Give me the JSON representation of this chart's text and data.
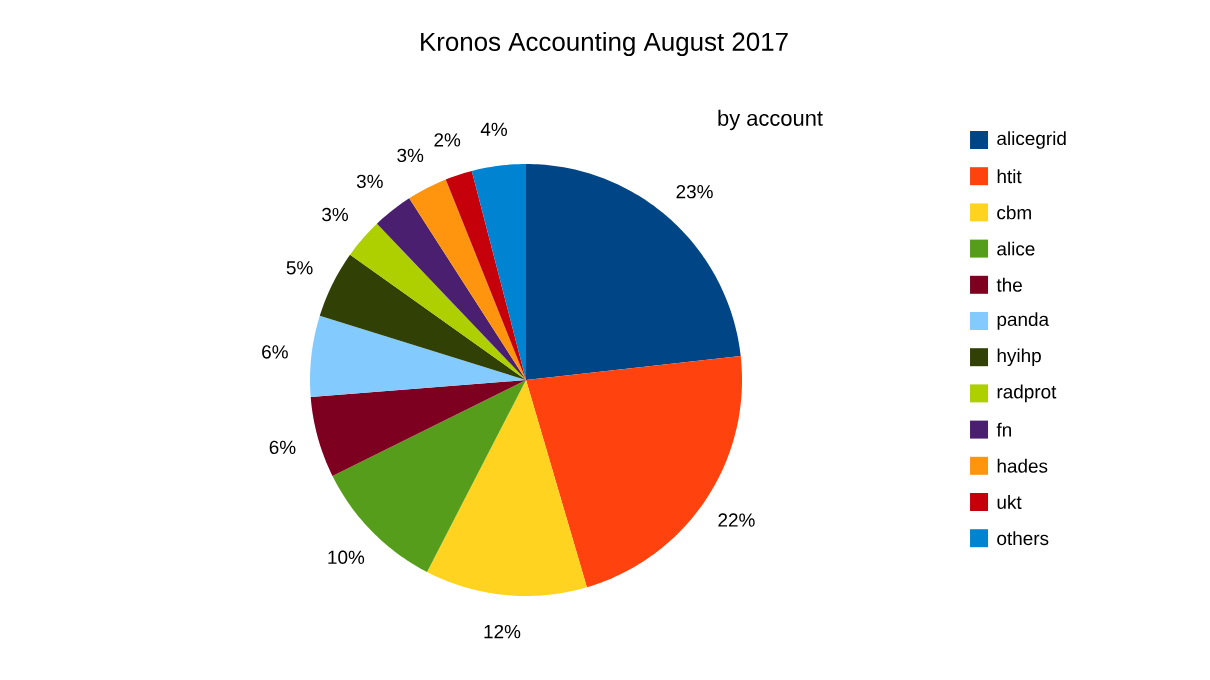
{
  "chart_data": {
    "type": "pie",
    "title": "Kronos Accounting August 2017",
    "subtitle": "by account",
    "categories": [
      "alicegrid",
      "htit",
      "cbm",
      "alice",
      "the",
      "panda",
      "hyihp",
      "radprot",
      "fn",
      "hades",
      "ukt",
      "others"
    ],
    "values": [
      23,
      22,
      12,
      10,
      6,
      6,
      5,
      3,
      3,
      3,
      2,
      4
    ],
    "colors": [
      "#004586",
      "#ff420e",
      "#ffd320",
      "#579d1c",
      "#7e0021",
      "#83caff",
      "#314004",
      "#aecf00",
      "#4b1f6f",
      "#ff950e",
      "#c5000b",
      "#0084d1"
    ],
    "value_labels": [
      "23%",
      "22%",
      "12%",
      "10%",
      "6%",
      "6%",
      "5%",
      "3%",
      "3%",
      "3%",
      "2%",
      "4%"
    ],
    "legend": "right"
  }
}
